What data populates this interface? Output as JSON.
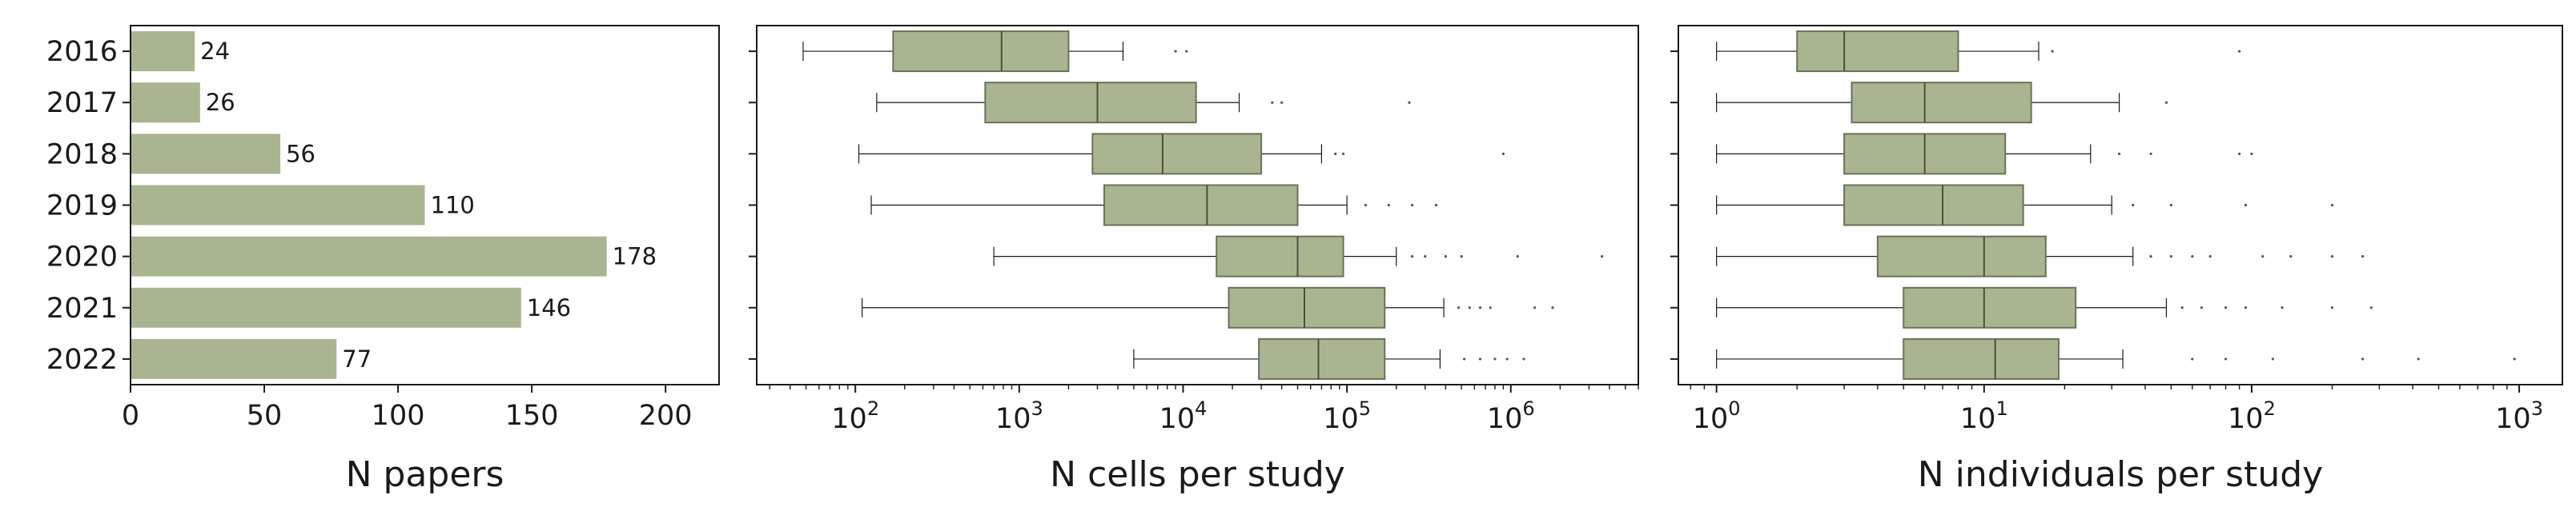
{
  "style": {
    "fill": "#a9b591",
    "edge": "#6a7258",
    "ink": "#1a1a1a"
  },
  "chart_data": [
    {
      "type": "bar",
      "orientation": "horizontal",
      "categories": [
        "2016",
        "2017",
        "2018",
        "2019",
        "2020",
        "2021",
        "2022"
      ],
      "values": [
        24,
        26,
        56,
        110,
        178,
        146,
        77
      ],
      "data_labels": [
        "24",
        "26",
        "56",
        "110",
        "178",
        "146",
        "77"
      ],
      "xlabel": "N papers",
      "xlim": [
        0,
        220
      ],
      "xticks": [
        0,
        50,
        100,
        150,
        200
      ],
      "xtick_labels": [
        "0",
        "50",
        "100",
        "150",
        "200"
      ],
      "grid": false
    },
    {
      "type": "box",
      "orientation": "horizontal",
      "categories": [
        "2016",
        "2017",
        "2018",
        "2019",
        "2020",
        "2021",
        "2022"
      ],
      "xlabel": "N cells per study",
      "xscale": "log",
      "xlim": [
        25,
        6000000
      ],
      "xticks": [
        100,
        1000,
        10000,
        100000,
        1000000
      ],
      "xtick_labels": [
        "10",
        "10",
        "10",
        "10",
        "10"
      ],
      "xtick_exponents": [
        "2",
        "3",
        "4",
        "5",
        "6"
      ],
      "grid": false,
      "boxes": [
        {
          "year": "2016",
          "whisker_low": 48,
          "q1": 170,
          "median": 780,
          "q3": 2000,
          "whisker_high": 4300,
          "outliers": [
            9000,
            10500
          ]
        },
        {
          "year": "2017",
          "whisker_low": 135,
          "q1": 620,
          "median": 3000,
          "q3": 12000,
          "whisker_high": 22000,
          "outliers": [
            35000,
            40000,
            240000
          ]
        },
        {
          "year": "2018",
          "whisker_low": 105,
          "q1": 2800,
          "median": 7500,
          "q3": 30000,
          "whisker_high": 70000,
          "outliers": [
            85000,
            95000,
            900000
          ]
        },
        {
          "year": "2019",
          "whisker_low": 125,
          "q1": 3300,
          "median": 14000,
          "q3": 50000,
          "whisker_high": 100000,
          "outliers": [
            130000,
            180000,
            250000,
            350000
          ]
        },
        {
          "year": "2020",
          "whisker_low": 700,
          "q1": 16000,
          "median": 50000,
          "q3": 95000,
          "whisker_high": 200000,
          "outliers": [
            250000,
            300000,
            400000,
            500000,
            1100000,
            3600000
          ]
        },
        {
          "year": "2021",
          "whisker_low": 110,
          "q1": 19000,
          "median": 55000,
          "q3": 170000,
          "whisker_high": 390000,
          "outliers": [
            480000,
            560000,
            650000,
            750000,
            1400000,
            1800000
          ]
        },
        {
          "year": "2022",
          "whisker_low": 5000,
          "q1": 29000,
          "median": 67000,
          "q3": 170000,
          "whisker_high": 370000,
          "outliers": [
            520000,
            650000,
            800000,
            950000,
            1200000
          ]
        }
      ]
    },
    {
      "type": "box",
      "orientation": "horizontal",
      "categories": [
        "2016",
        "2017",
        "2018",
        "2019",
        "2020",
        "2021",
        "2022"
      ],
      "xlabel": "N individuals per study",
      "xscale": "log",
      "xlim": [
        0.72,
        1450
      ],
      "xticks": [
        1,
        10,
        100,
        1000
      ],
      "xtick_labels": [
        "10",
        "10",
        "10",
        "10"
      ],
      "xtick_exponents": [
        "0",
        "1",
        "2",
        "3"
      ],
      "grid": false,
      "boxes": [
        {
          "year": "2016",
          "whisker_low": 1,
          "q1": 2,
          "median": 3,
          "q3": 8,
          "whisker_high": 16,
          "outliers": [
            18,
            90
          ]
        },
        {
          "year": "2017",
          "whisker_low": 1,
          "q1": 3.2,
          "median": 6,
          "q3": 15,
          "whisker_high": 32,
          "outliers": [
            48
          ]
        },
        {
          "year": "2018",
          "whisker_low": 1,
          "q1": 3,
          "median": 6,
          "q3": 12,
          "whisker_high": 25,
          "outliers": [
            32,
            42,
            90,
            100
          ]
        },
        {
          "year": "2019",
          "whisker_low": 1,
          "q1": 3,
          "median": 7,
          "q3": 14,
          "whisker_high": 30,
          "outliers": [
            36,
            50,
            95,
            200
          ]
        },
        {
          "year": "2020",
          "whisker_low": 1,
          "q1": 4,
          "median": 10,
          "q3": 17,
          "whisker_high": 36,
          "outliers": [
            42,
            50,
            60,
            70,
            110,
            140,
            200,
            260
          ]
        },
        {
          "year": "2021",
          "whisker_low": 1,
          "q1": 5,
          "median": 10,
          "q3": 22,
          "whisker_high": 48,
          "outliers": [
            55,
            65,
            80,
            95,
            130,
            200,
            280
          ]
        },
        {
          "year": "2022",
          "whisker_low": 1,
          "q1": 5,
          "median": 11,
          "q3": 19,
          "whisker_high": 33,
          "outliers": [
            60,
            80,
            120,
            260,
            420,
            960
          ]
        }
      ]
    }
  ]
}
